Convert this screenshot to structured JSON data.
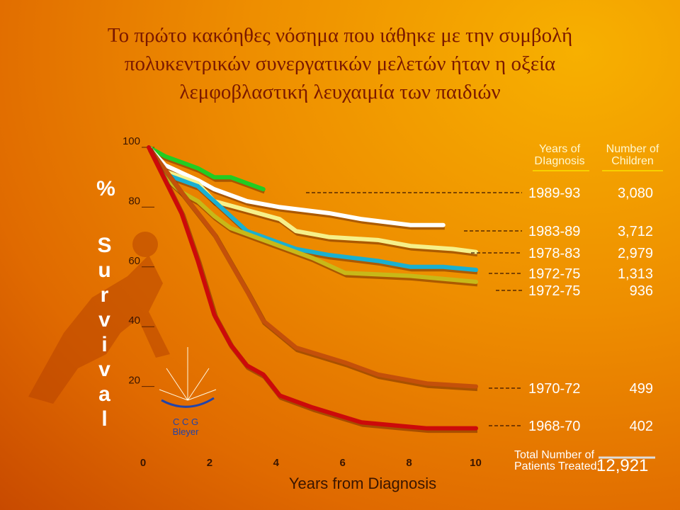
{
  "chart_data": {
    "type": "line",
    "title": "Το πρώτο κακόηθες νόσημα που ιάθηκε με την συμβολή πολυκεντρικών συνεργατικών μελετών ήταν η οξεία λεμφοβλαστική λευχαιμία των παιδιών",
    "xlabel": "Years from Diagnosis",
    "ylabel_symbol": "%",
    "ylabel": "Survival",
    "xlim": [
      0,
      10
    ],
    "ylim": [
      0,
      100
    ],
    "xticks": [
      0,
      2,
      4,
      6,
      8,
      10
    ],
    "yticks": [
      20,
      40,
      60,
      80,
      100
    ],
    "legend_headers": [
      "Years of DIagnosis",
      "Number of Children"
    ],
    "series": [
      {
        "name": "1989-93",
        "children": {
          "value": 3080,
          "label": "3,080"
        },
        "color": "#22cc22",
        "x": [
          0,
          0.5,
          1,
          1.5,
          2,
          2.5,
          3,
          3.5
        ],
        "values": [
          100,
          97,
          95,
          93,
          90,
          90,
          88,
          86
        ]
      },
      {
        "name": "1983-89",
        "children": {
          "value": 3712,
          "label": "3,712"
        },
        "color": "#ffffff",
        "x": [
          0,
          0.5,
          1.5,
          2,
          3,
          4,
          5.5,
          6.5,
          8,
          9
        ],
        "values": [
          100,
          94,
          89,
          86,
          82,
          80,
          78,
          76,
          74,
          74
        ]
      },
      {
        "name": "1978-83",
        "children": {
          "value": 2979,
          "label": "2,979"
        },
        "color": "#f6f08a",
        "x": [
          0,
          0.5,
          1.5,
          2,
          3,
          4,
          4.5,
          5.5,
          7,
          8,
          9.3,
          10
        ],
        "values": [
          100,
          92,
          88,
          82,
          79,
          76,
          72,
          70,
          69,
          67,
          66,
          65
        ]
      },
      {
        "name": "1972-75",
        "children": {
          "value": 1313,
          "label": "1,313"
        },
        "color": "#1ab0d0",
        "x": [
          0,
          0.5,
          1.5,
          2,
          3,
          4,
          4.5,
          5.5,
          7,
          8,
          9,
          10
        ],
        "values": [
          100,
          91,
          87,
          82,
          72,
          68,
          66,
          64,
          62,
          60,
          60,
          59
        ]
      },
      {
        "name": "1972-75",
        "children": {
          "value": 936,
          "label": "936"
        },
        "color": "#c8b818",
        "x": [
          0,
          0.5,
          1,
          1.5,
          2,
          2.5,
          3,
          4,
          5,
          6,
          8,
          10
        ],
        "values": [
          100,
          90,
          85,
          82,
          77,
          73,
          71,
          67,
          63,
          58,
          57,
          55
        ]
      },
      {
        "name": "1970-72",
        "children": {
          "value": 499,
          "label": "499"
        },
        "color": "#c4500a",
        "x": [
          0,
          1,
          2,
          3,
          3.5,
          4.5,
          6,
          7,
          8.5,
          10
        ],
        "values": [
          100,
          85,
          71,
          52,
          42,
          33,
          28,
          24,
          21,
          20
        ]
      },
      {
        "name": "1968-70",
        "children": {
          "value": 402,
          "label": "402"
        },
        "color": "#cc0a0a",
        "x": [
          0,
          1,
          1.5,
          2,
          2.5,
          3,
          3.5,
          4,
          5,
          6.5,
          7.5,
          8.5,
          10
        ],
        "values": [
          100,
          78,
          62,
          44,
          34,
          27,
          24,
          17,
          13,
          8,
          7,
          6,
          6
        ]
      }
    ],
    "logo": [
      "C C G",
      "Bleyer"
    ],
    "total_label": "Total Number of Patients Treated:",
    "total": {
      "value": 12921,
      "label": "12,921"
    }
  }
}
